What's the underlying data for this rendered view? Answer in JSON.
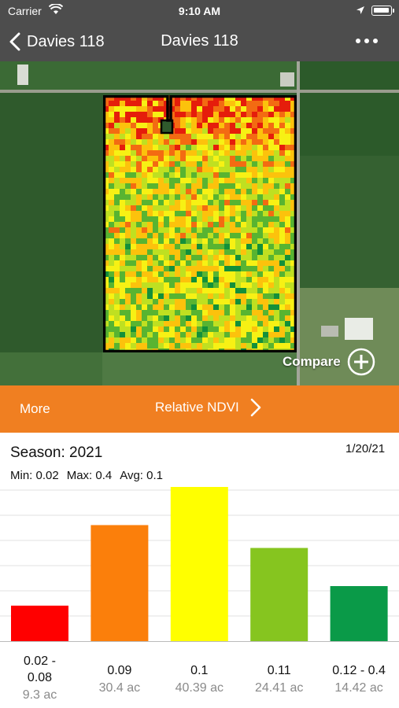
{
  "status_bar": {
    "carrier": "Carrier",
    "time": "9:10 AM"
  },
  "nav": {
    "back_label": "Davies 118",
    "title": "Davies 118"
  },
  "map": {
    "compare_label": "Compare"
  },
  "toolbar": {
    "more_label": "More",
    "layer_label": "Relative NDVI"
  },
  "stats": {
    "season": "Season: 2021",
    "date": "1/20/21",
    "min": "Min: 0.02",
    "max": "Max: 0.4",
    "avg": "Avg: 0.1"
  },
  "chart_data": {
    "type": "bar",
    "categories": [
      "0.02 -\n0.08",
      "0.09",
      "0.1",
      "0.11",
      "0.12 - 0.4"
    ],
    "values": [
      9.3,
      30.4,
      40.39,
      24.41,
      14.42
    ],
    "value_labels": [
      "9.3 ac",
      "30.4 ac",
      "40.39 ac",
      "24.41 ac",
      "14.42 ac"
    ],
    "colors": [
      "#ff0000",
      "#fb7f0b",
      "#ffff00",
      "#86c51f",
      "#0a9a48"
    ],
    "ylim": [
      0,
      40.39
    ],
    "grid": true
  }
}
